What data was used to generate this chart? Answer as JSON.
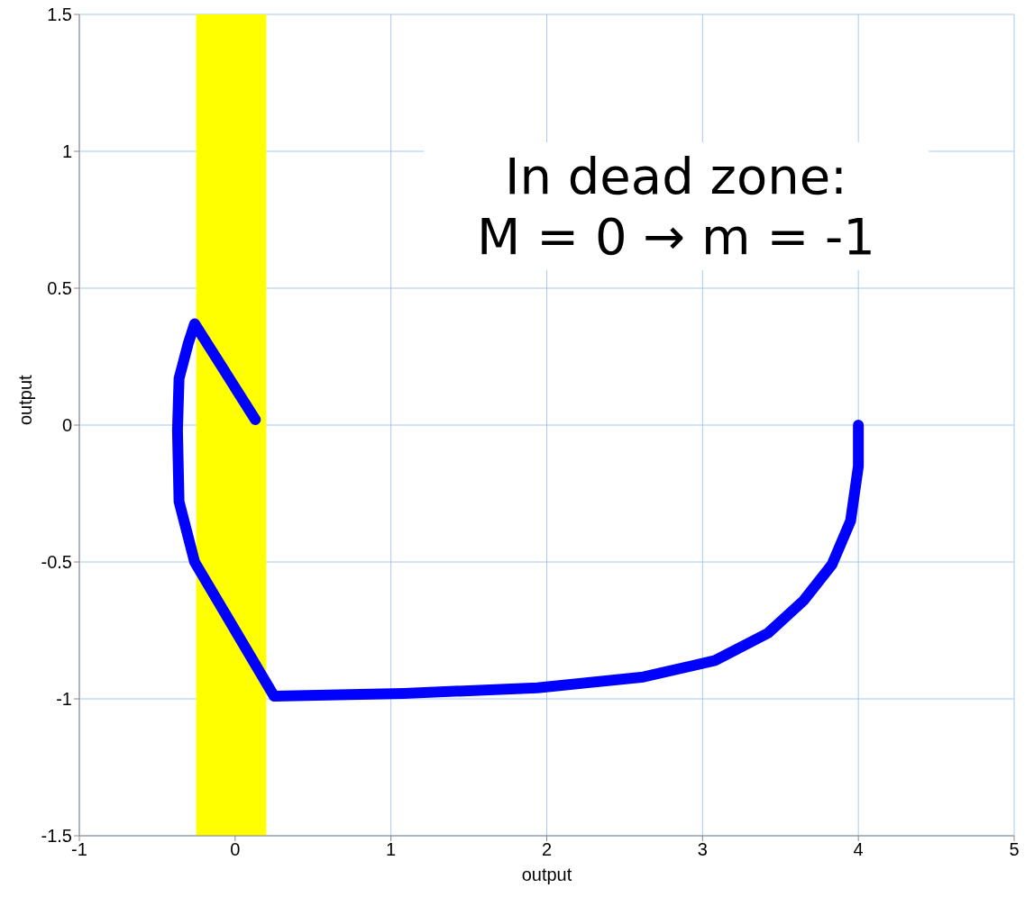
{
  "chart_data": {
    "type": "line",
    "xlabel": "output",
    "ylabel": "output",
    "annotations": [
      "In dead zone:\nM = 0 → m = -1"
    ],
    "x": [
      4,
      4,
      3.95,
      3.83,
      3.65,
      3.42,
      3.08,
      2.62,
      1.94,
      1.08,
      0.25,
      -0.26,
      -0.36,
      -0.37,
      -0.36,
      -0.3,
      -0.26,
      0.13
    ],
    "series": [
      {
        "color": "#0000ff",
        "values": [
          0,
          -0.15,
          -0.35,
          -0.51,
          -0.64,
          -0.76,
          -0.86,
          -0.92,
          -0.96,
          -0.98,
          -0.99,
          -0.5,
          -0.28,
          -0.02,
          0.17,
          0.3,
          0.37,
          0.02
        ]
      }
    ],
    "xlim": [
      -1,
      5
    ],
    "xticks": [
      -1,
      0,
      1,
      2,
      3,
      4,
      5
    ],
    "ylim": [
      -1.5,
      1.5
    ],
    "yticks": [
      -1.5,
      -1,
      -0.5,
      0,
      0.5,
      1,
      1.5
    ],
    "grid": true,
    "marker": "none",
    "line_style": "solid",
    "bands": [
      {
        "axis": "x",
        "from": -0.25,
        "to": 0.2,
        "color": "#ffff00"
      }
    ]
  }
}
